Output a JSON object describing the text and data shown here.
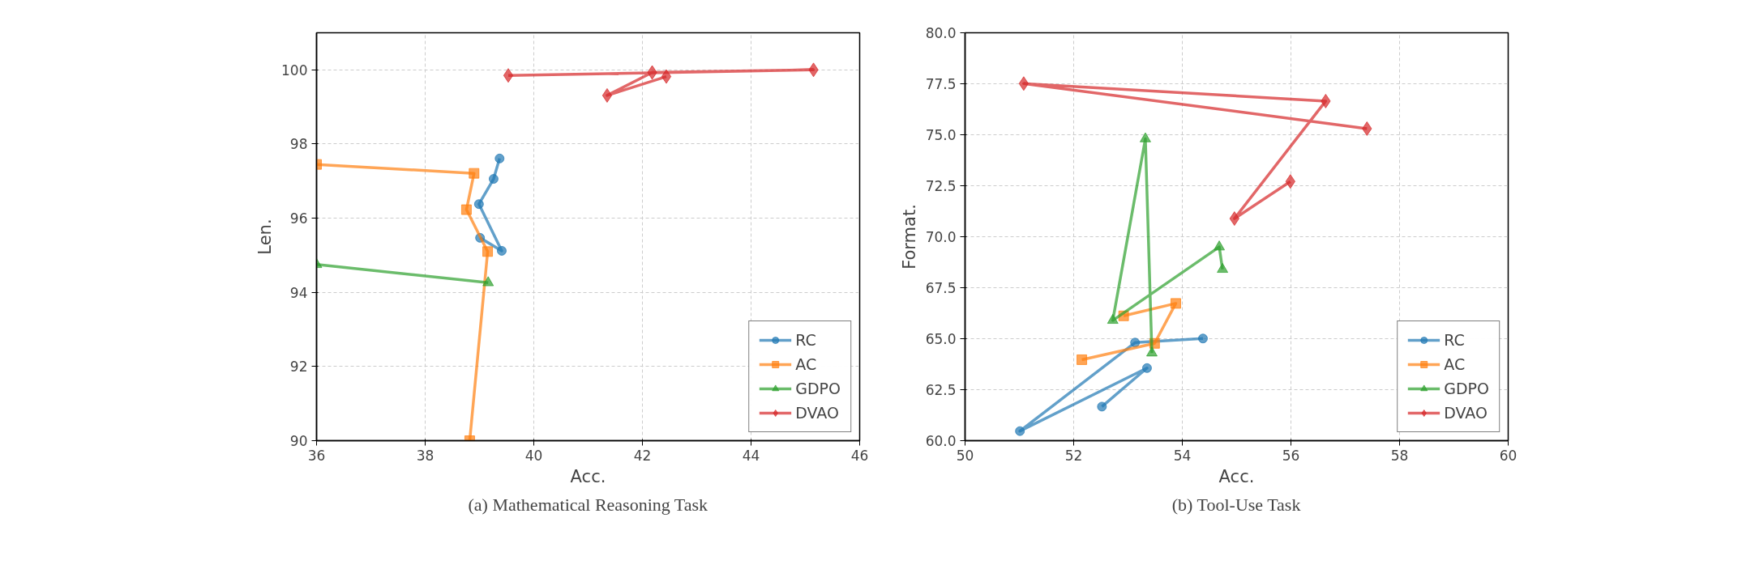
{
  "chart_data": [
    {
      "type": "line",
      "xlabel": "Acc.",
      "ylabel": "Len.",
      "xlim": [
        36,
        46
      ],
      "ylim": [
        90,
        101
      ],
      "xticks": [
        36,
        38,
        40,
        42,
        44,
        46
      ],
      "yticks": [
        90,
        92,
        94,
        96,
        98,
        100
      ],
      "grid": true,
      "legend": "bottom right",
      "annotations": [
        "(a) Mathematical Reasoning Task"
      ],
      "series": [
        {
          "name": "RC",
          "color": "#1f77b4",
          "marker": "circle",
          "x": [
            39.37,
            39.26,
            38.99,
            39.41,
            39.01
          ],
          "values": [
            97.61,
            97.06,
            96.38,
            95.12,
            95.47
          ]
        },
        {
          "name": "AC",
          "color": "#ff7f0e",
          "marker": "square",
          "x": [
            36,
            38.9,
            38.76,
            39.15,
            38.82
          ],
          "values": [
            97.45,
            97.21,
            96.23,
            95.1,
            90
          ]
        },
        {
          "name": "GDPO",
          "color": "#2ca02c",
          "marker": "triangle",
          "x": [
            36,
            39.16
          ],
          "values": [
            94.75,
            94.26
          ]
        },
        {
          "name": "DVAO",
          "color": "#d62728",
          "marker": "diamond",
          "x": [
            39.53,
            45.15,
            42.18,
            41.35,
            42.44
          ],
          "values": [
            99.85,
            100.0,
            99.93,
            99.31,
            99.82
          ]
        }
      ]
    },
    {
      "type": "line",
      "xlabel": "Acc.",
      "ylabel": "Format.",
      "xlim": [
        50,
        60
      ],
      "ylim": [
        60,
        80
      ],
      "xticks": [
        50,
        52,
        54,
        56,
        58,
        60
      ],
      "yticks": [
        {
          "value": 60,
          "label": "60.0"
        },
        {
          "value": 62.5,
          "label": "62.5"
        },
        {
          "value": 65,
          "label": "65.0"
        },
        {
          "value": 67.5,
          "label": "67.5"
        },
        {
          "value": 70,
          "label": "70.0"
        },
        {
          "value": 72.5,
          "label": "72.5"
        },
        {
          "value": 75,
          "label": "75.0"
        },
        {
          "value": 77.5,
          "label": "77.5"
        },
        {
          "value": 80,
          "label": "80.0"
        }
      ],
      "grid": true,
      "legend": "bottom right",
      "annotations": [
        "(b) Tool-Use Task"
      ],
      "series": [
        {
          "name": "RC",
          "color": "#1f77b4",
          "marker": "circle",
          "x": [
            52.52,
            53.35,
            51.01,
            53.13,
            54.38
          ],
          "values": [
            61.67,
            63.56,
            60.47,
            64.81,
            65.01
          ]
        },
        {
          "name": "AC",
          "color": "#ff7f0e",
          "marker": "square",
          "x": [
            52.15,
            53.49,
            53.88,
            52.92
          ],
          "values": [
            63.97,
            64.77,
            66.73,
            66.12
          ]
        },
        {
          "name": "GDPO",
          "color": "#2ca02c",
          "marker": "triangle",
          "x": [
            53.44,
            53.32,
            52.72,
            54.68,
            54.74
          ],
          "values": [
            64.3,
            74.8,
            65.9,
            69.5,
            68.4
          ]
        },
        {
          "name": "DVAO",
          "color": "#d62728",
          "marker": "diamond",
          "x": [
            55.99,
            54.96,
            56.64,
            51.08,
            57.4
          ],
          "values": [
            72.71,
            70.89,
            76.65,
            77.51,
            75.3
          ]
        }
      ]
    }
  ]
}
